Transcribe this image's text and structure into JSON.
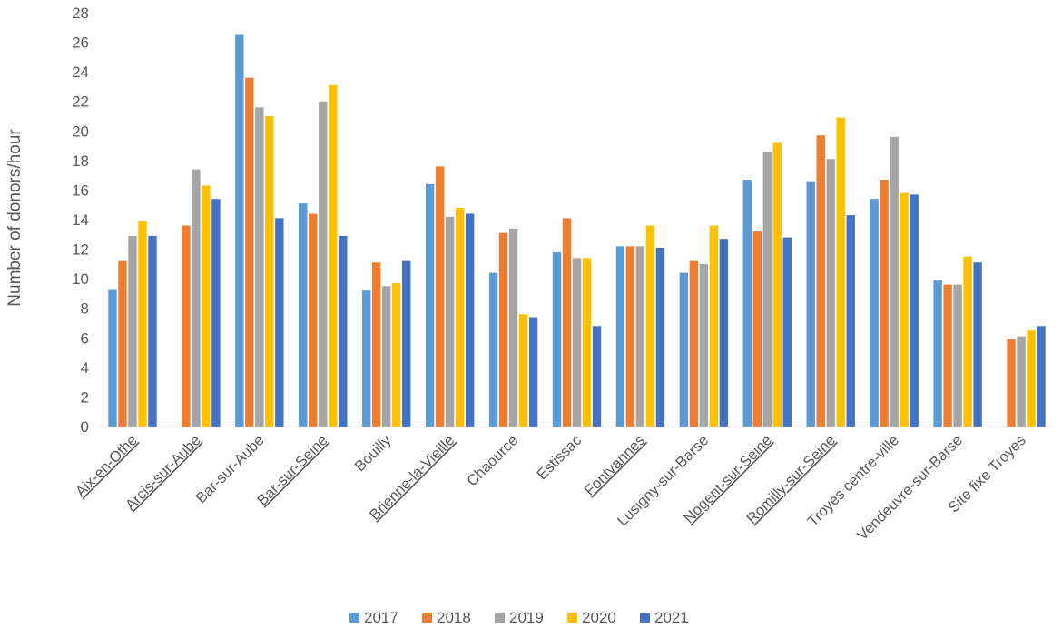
{
  "chart_data": {
    "type": "bar",
    "title": "",
    "xlabel": "",
    "ylabel": "Number of donors/hour",
    "ylim": [
      0,
      28
    ],
    "y_ticks": [
      0,
      2,
      4,
      6,
      8,
      10,
      12,
      14,
      16,
      18,
      20,
      22,
      24,
      26,
      28
    ],
    "grid": false,
    "legend_position": "bottom",
    "categories": [
      "Aix-en-Othe",
      "Arcis-sur-Aube",
      "Bar-sur-Aube",
      "Bar-sur-Seine",
      "Bouilly",
      "Brienne-la-Vieille",
      "Chaource",
      "Estissac",
      "Fontvannes",
      "Lusigny-sur-Barse",
      "Nogent-sur-Seine",
      "Romilly-sur-Seine",
      "Troyes centre-ville",
      "Vendeuvre-sur-Barse",
      "Site fixe Troyes"
    ],
    "underlined_categories": [
      "Aix-en-Othe",
      "Arcis-sur-Aube",
      "Bar-sur-Seine",
      "Brienne-la-Vieille",
      "Fontvannes",
      "Nogent-sur-Seine",
      "Romilly-sur-Seine"
    ],
    "series": [
      {
        "name": "2017",
        "color": "#5B9BD5",
        "values": [
          9.3,
          null,
          26.5,
          15.1,
          9.2,
          16.4,
          10.4,
          11.8,
          12.2,
          10.4,
          16.7,
          16.6,
          15.4,
          9.9,
          null
        ]
      },
      {
        "name": "2018",
        "color": "#ED7D31",
        "values": [
          11.2,
          13.6,
          23.6,
          14.4,
          11.1,
          17.6,
          13.1,
          14.1,
          12.2,
          11.2,
          13.2,
          19.7,
          16.7,
          9.6,
          5.9
        ]
      },
      {
        "name": "2019",
        "color": "#A5A5A5",
        "values": [
          12.9,
          17.4,
          21.6,
          22.0,
          9.5,
          14.2,
          13.4,
          11.4,
          12.2,
          11.0,
          18.6,
          18.1,
          19.6,
          9.6,
          6.1
        ]
      },
      {
        "name": "2020",
        "color": "#FFC000",
        "values": [
          13.9,
          16.3,
          21.0,
          23.1,
          9.7,
          14.8,
          7.6,
          11.4,
          13.6,
          13.6,
          19.2,
          20.9,
          15.8,
          11.5,
          6.5
        ]
      },
      {
        "name": "2021",
        "color": "#4472C4",
        "values": [
          12.9,
          15.4,
          14.1,
          12.9,
          11.2,
          14.4,
          7.4,
          6.8,
          12.1,
          12.7,
          12.8,
          14.3,
          15.7,
          11.1,
          6.8
        ]
      }
    ]
  }
}
